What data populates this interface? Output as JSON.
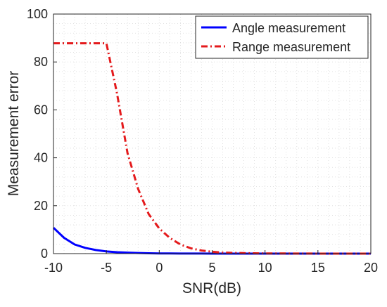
{
  "chart_data": {
    "type": "line",
    "title": "",
    "xlabel": "SNR(dB)",
    "ylabel": "Measurement error",
    "xlim": [
      -10,
      20
    ],
    "ylim": [
      0,
      100
    ],
    "xticks": [
      -10,
      -5,
      0,
      5,
      10,
      15,
      20
    ],
    "yticks": [
      0,
      20,
      40,
      60,
      80,
      100
    ],
    "grid": "on (minor dotted)",
    "legend_position": "top-right",
    "series": [
      {
        "name": "Angle measurement",
        "color": "#0000ff",
        "line_style": "solid",
        "x": [
          -10,
          -9,
          -8,
          -7,
          -6,
          -5,
          -4,
          -3,
          -2,
          -1,
          0,
          1,
          2,
          3,
          4,
          5,
          6,
          8,
          10,
          12,
          14,
          16,
          18,
          20
        ],
        "y": [
          10.8,
          6.6,
          3.8,
          2.4,
          1.5,
          0.9,
          0.6,
          0.4,
          0.25,
          0.15,
          0.1,
          0.06,
          0.04,
          0.03,
          0.02,
          0.01,
          0.0,
          0.0,
          0.0,
          0.0,
          0.0,
          0.0,
          0.0,
          0.0
        ]
      },
      {
        "name": "Range measurement",
        "color": "#e41a1c",
        "line_style": "dash-dot",
        "x": [
          -10,
          -5,
          -4,
          -3,
          -2,
          -1,
          0,
          1,
          2,
          3,
          4,
          5,
          6,
          7,
          8,
          10,
          12,
          14,
          16,
          18,
          20
        ],
        "y": [
          87.8,
          87.8,
          67,
          42,
          27,
          16.5,
          10.5,
          6.5,
          3.8,
          2.2,
          1.3,
          0.8,
          0.45,
          0.3,
          0.2,
          0.1,
          0.05,
          0.02,
          0.01,
          0.0,
          0.0
        ]
      }
    ]
  }
}
